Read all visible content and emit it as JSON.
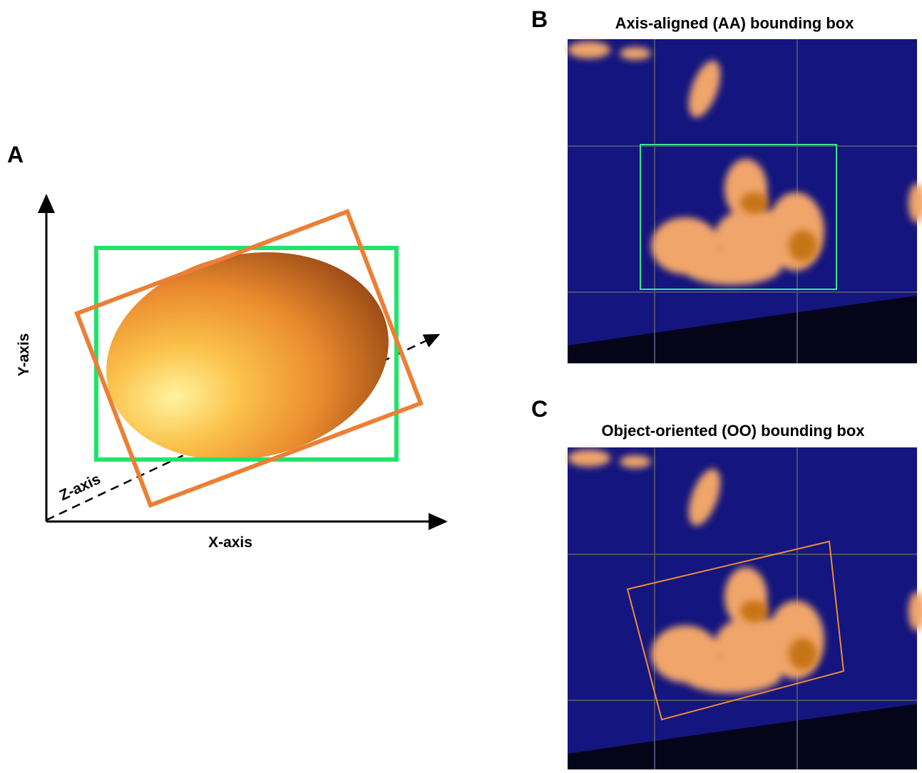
{
  "panels": [
    {
      "label": "A",
      "axes": {
        "x": "X-axis",
        "y": "Y-axis",
        "z": "Z-axis"
      }
    },
    {
      "label": "B",
      "title": "Axis-aligned (AA) bounding box"
    },
    {
      "label": "C",
      "title": "Object-oriented (OO) bounding box"
    }
  ]
}
